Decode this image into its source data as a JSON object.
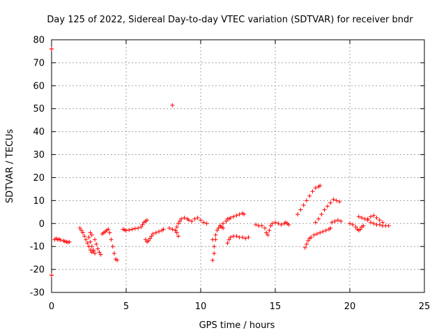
{
  "chart_data": {
    "type": "scatter",
    "title": "Day 125 of 2022, Sidereal Day-to-day VTEC variation (SDTVAR) for receiver bndr",
    "xlabel": "GPS time / hours",
    "ylabel": "SDTVAR / TECUs",
    "xlim": [
      0,
      25
    ],
    "ylim": [
      -30,
      80
    ],
    "xticks": [
      0,
      5,
      10,
      15,
      20,
      25
    ],
    "yticks": [
      -30,
      -20,
      -10,
      0,
      10,
      20,
      30,
      40,
      50,
      60,
      70,
      80
    ],
    "grid": true,
    "marker": "+",
    "marker_color": "#ff0000",
    "series": [
      {
        "name": "SDTVAR",
        "x": [
          0.0,
          0.0,
          0.2,
          0.3,
          0.4,
          0.5,
          0.6,
          0.8,
          0.9,
          1.0,
          1.1,
          1.2,
          8.1,
          1.9,
          2.0,
          2.1,
          2.2,
          2.3,
          2.4,
          2.5,
          2.6,
          2.7,
          2.8,
          2.5,
          2.6,
          2.7,
          2.8,
          2.9,
          2.6,
          2.7,
          2.9,
          3.0,
          3.1,
          3.2,
          3.3,
          3.4,
          3.5,
          3.6,
          3.7,
          3.8,
          3.9,
          4.0,
          4.1,
          4.2,
          4.3,
          4.4,
          4.8,
          4.9,
          5.0,
          5.2,
          5.4,
          5.6,
          5.8,
          6.0,
          6.1,
          6.2,
          6.3,
          6.4,
          6.3,
          6.4,
          6.5,
          6.6,
          6.7,
          6.8,
          7.0,
          7.2,
          7.4,
          7.5,
          7.9,
          8.1,
          8.3,
          8.4,
          8.5,
          8.3,
          8.4,
          8.5,
          8.6,
          8.7,
          8.9,
          9.1,
          9.2,
          9.4,
          9.6,
          9.8,
          10.0,
          10.2,
          10.4,
          10.8,
          10.8,
          10.9,
          10.9,
          11.0,
          11.0,
          11.1,
          11.2,
          11.3,
          11.4,
          11.5,
          11.3,
          11.5,
          11.7,
          11.9,
          11.8,
          12.0,
          12.2,
          12.4,
          12.6,
          12.8,
          12.9,
          11.8,
          11.9,
          12.0,
          12.2,
          12.4,
          12.6,
          12.8,
          13.0,
          13.2,
          13.7,
          13.9,
          14.1,
          14.3,
          14.4,
          14.5,
          14.6,
          14.7,
          14.8,
          15.0,
          15.2,
          15.4,
          15.6,
          15.7,
          15.8,
          15.9,
          16.5,
          16.7,
          16.9,
          17.1,
          17.3,
          17.5,
          17.7,
          17.9,
          18.0,
          17.0,
          17.1,
          17.2,
          17.3,
          17.4,
          17.6,
          17.8,
          18.0,
          18.2,
          18.4,
          18.6,
          18.7,
          17.7,
          17.9,
          18.1,
          18.3,
          18.5,
          18.7,
          18.9,
          19.1,
          19.3,
          18.8,
          19.0,
          19.2,
          19.4,
          20.0,
          20.2,
          20.4,
          20.5,
          20.6,
          20.7,
          20.8,
          20.9,
          20.6,
          20.8,
          21.0,
          21.2,
          21.4,
          21.6,
          21.8,
          22.0,
          22.2,
          22.4,
          22.6,
          21.2,
          21.4,
          21.6,
          21.8,
          22.0,
          22.2,
          0.0,
          0.0
        ],
        "y": [
          76,
          -22.5,
          -7.0,
          -6.5,
          -7.0,
          -6.8,
          -7.2,
          -7.5,
          -7.8,
          -8.0,
          -8.2,
          -8.0,
          51.5,
          -2.0,
          -3.0,
          -4.0,
          -5.5,
          -7.0,
          -8.5,
          -10.0,
          -11.5,
          -12.5,
          -12.0,
          -6.0,
          -8.0,
          -10.0,
          -11.5,
          -13.0,
          -4.0,
          -5.0,
          -7.0,
          -9.0,
          -11.0,
          -12.5,
          -13.5,
          -4.5,
          -4.0,
          -3.5,
          -3.0,
          -2.5,
          -4.0,
          -7.0,
          -10.0,
          -13.0,
          -15.5,
          -16.0,
          -2.5,
          -2.8,
          -3.0,
          -2.8,
          -2.5,
          -2.2,
          -2.0,
          -1.5,
          -0.5,
          0.5,
          1.0,
          1.5,
          -7.0,
          -8.0,
          -7.5,
          -6.5,
          -5.5,
          -4.5,
          -4.0,
          -3.5,
          -3.0,
          -2.5,
          -2.0,
          -2.5,
          -3.0,
          -4.0,
          -5.5,
          -3.0,
          -1.5,
          0.0,
          1.0,
          2.0,
          2.5,
          2.0,
          1.5,
          1.0,
          2.0,
          2.5,
          1.5,
          0.5,
          0.0,
          -7.0,
          -16.0,
          -13.0,
          -10.0,
          -7.0,
          -5.0,
          -3.0,
          -2.0,
          -1.0,
          -1.5,
          -2.0,
          -1.0,
          0.0,
          1.0,
          2.0,
          2.0,
          2.5,
          3.0,
          3.5,
          4.0,
          4.5,
          4.0,
          -8.5,
          -7.0,
          -6.0,
          -5.5,
          -5.5,
          -6.0,
          -6.0,
          -6.5,
          -6.0,
          -0.5,
          -1.0,
          -1.0,
          -2.0,
          -4.0,
          -5.0,
          -3.0,
          -1.0,
          0.0,
          0.5,
          0.0,
          -0.5,
          0.0,
          0.5,
          0.0,
          -0.5,
          4.0,
          6.0,
          8.0,
          10.0,
          12.0,
          14.0,
          15.5,
          16.0,
          16.5,
          -10.5,
          -9.0,
          -7.5,
          -6.5,
          -6.0,
          -5.0,
          -4.5,
          -4.0,
          -3.5,
          -3.0,
          -2.5,
          -2.0,
          0.5,
          2.0,
          4.0,
          6.0,
          7.5,
          9.0,
          10.5,
          10.0,
          9.5,
          0.5,
          1.0,
          1.5,
          1.0,
          0.0,
          -0.5,
          -1.5,
          -2.5,
          -3.0,
          -2.5,
          -1.5,
          -1.0,
          3.0,
          2.5,
          2.0,
          1.5,
          0.5,
          0.0,
          -0.5,
          -0.5,
          -1.0,
          -1.0,
          -1.0,
          2.0,
          3.0,
          3.5,
          2.5,
          1.5,
          0.5,
          76,
          -22.5
        ]
      }
    ]
  }
}
